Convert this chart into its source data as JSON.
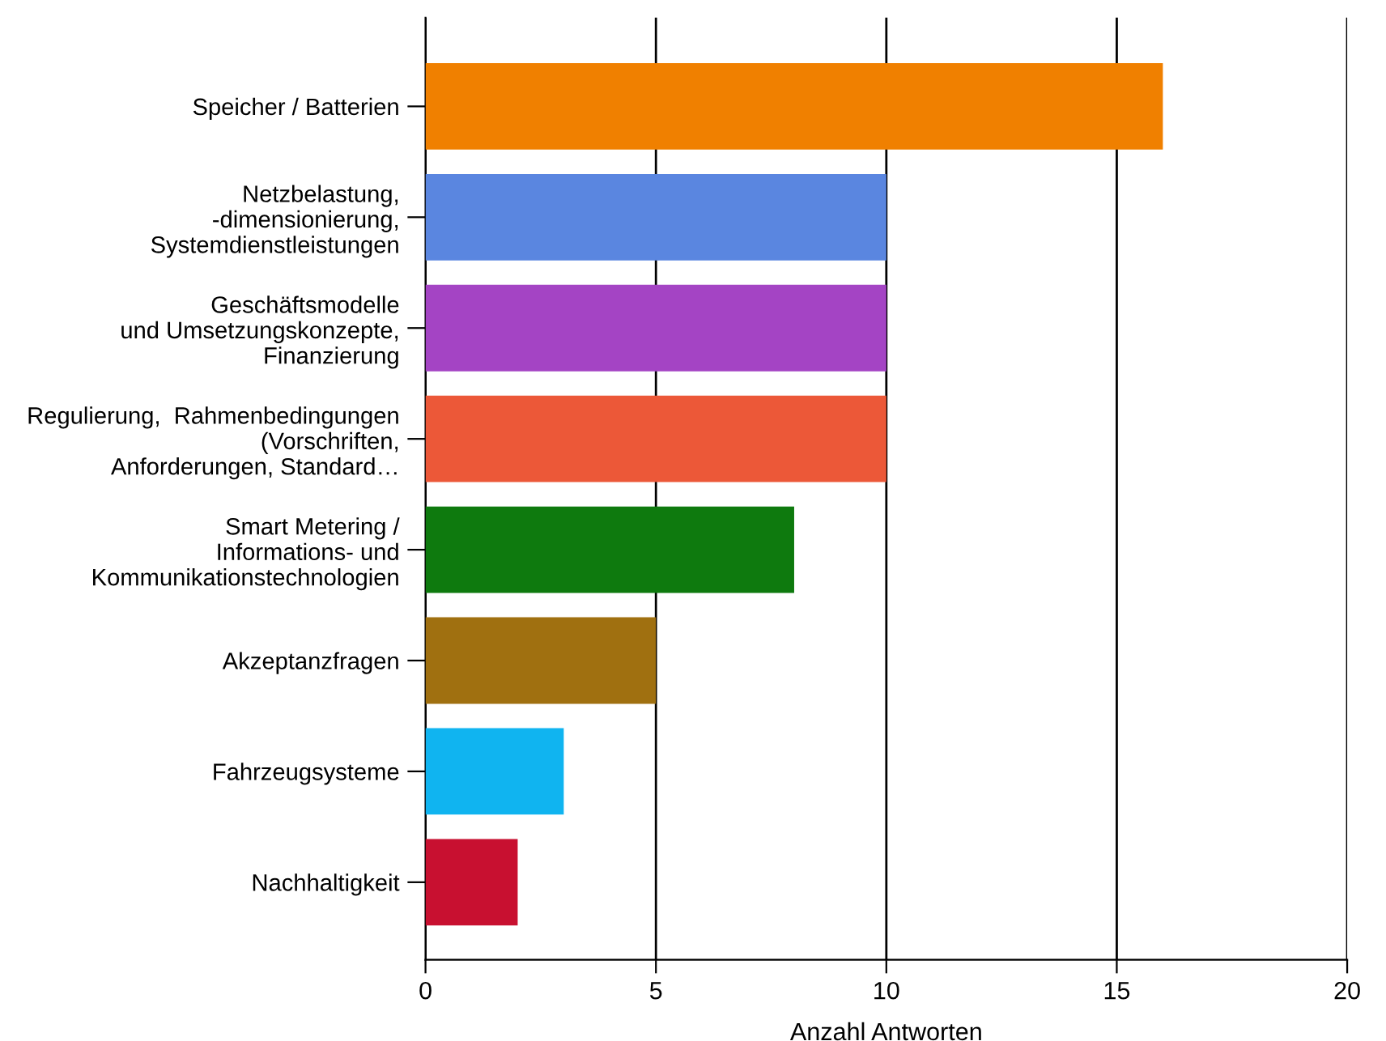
{
  "chart_data": {
    "type": "bar",
    "orientation": "horizontal",
    "xlabel": "Anzahl Antworten",
    "categories": [
      "Speicher / Batterien",
      "Netzbelastung,\n-dimensionierung,\nSystemdienstleistungen",
      "Geschäftsmodelle\nund Umsetzungskonzepte,\nFinanzierung",
      "Regulierung,  Rahmenbedingungen\n(Vorschriften,\nAnforderungen, Standard…",
      "Smart Metering /\nInformations- und\nKommunikationstechnologien",
      "Akzeptanzfragen",
      "Fahrzeugsysteme",
      "Nachhaltigkeit"
    ],
    "values": [
      16,
      10,
      10,
      10,
      8,
      5,
      3,
      2
    ],
    "colors": [
      "#f08000",
      "#5a86e0",
      "#a444c4",
      "#ec5838",
      "#0e7a0e",
      "#a07010",
      "#10b4f0",
      "#c81030"
    ],
    "xlim": [
      0,
      20
    ],
    "xticks": [
      0,
      5,
      10,
      15,
      20
    ],
    "grid": "x"
  }
}
